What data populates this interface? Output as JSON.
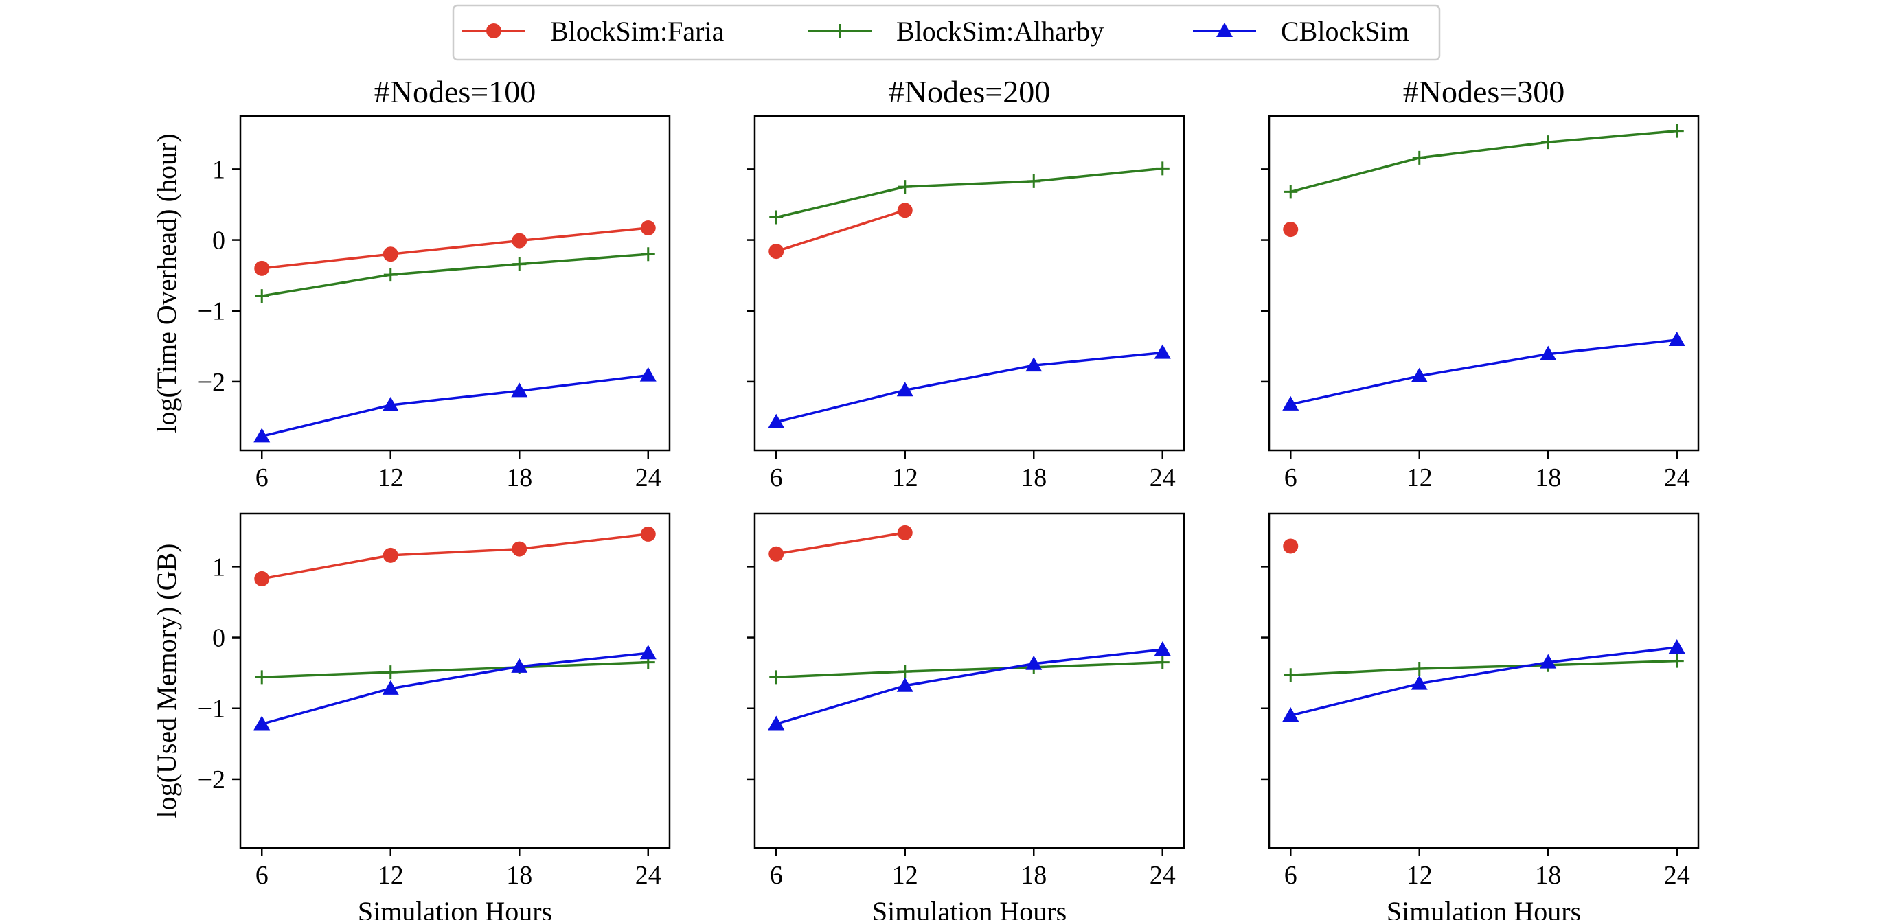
{
  "chart_data": {
    "type": "line",
    "layout": "2x3 grid, shared legend",
    "legend": {
      "placement": "top-center",
      "entries": [
        {
          "name": "BlockSim:Faria",
          "color": "#e0392b",
          "marker": "circle"
        },
        {
          "name": "BlockSim:Alharby",
          "color": "#2e7d1f",
          "marker": "plus"
        },
        {
          "name": "CBlockSim",
          "color": "#0b10e0",
          "marker": "triangle"
        }
      ]
    },
    "column_titles": [
      "#Nodes=100",
      "#Nodes=200",
      "#Nodes=300"
    ],
    "row_ylabels": [
      "log(Time Overhead) (hour)",
      "log(Used Memory) (GB)"
    ],
    "xlabel": "Simulation Hours",
    "x": [
      6,
      12,
      18,
      24
    ],
    "x_ticks": [
      "6",
      "12",
      "18",
      "24"
    ],
    "xlim": [
      5,
      25
    ],
    "y_ticks": [
      {
        "value": 1,
        "label": "1"
      },
      {
        "value": 0,
        "label": "0"
      },
      {
        "value": -1,
        "label": "−1"
      },
      {
        "value": -2,
        "label": "−2"
      }
    ],
    "rows": [
      {
        "metric": "log(Time Overhead) (hour)",
        "ylim": [
          -2.97,
          1.75
        ],
        "panels": [
          {
            "title": "#Nodes=100",
            "series": [
              {
                "name": "BlockSim:Faria",
                "values": [
                  -0.4,
                  -0.2,
                  -0.01,
                  0.17
                ]
              },
              {
                "name": "BlockSim:Alharby",
                "values": [
                  -0.79,
                  -0.49,
                  -0.34,
                  -0.2
                ]
              },
              {
                "name": "CBlockSim",
                "values": [
                  -2.77,
                  -2.33,
                  -2.13,
                  -1.91
                ]
              }
            ]
          },
          {
            "title": "#Nodes=200",
            "series": [
              {
                "name": "BlockSim:Faria",
                "values": [
                  -0.16,
                  0.42,
                  null,
                  null
                ]
              },
              {
                "name": "BlockSim:Alharby",
                "values": [
                  0.32,
                  0.75,
                  0.83,
                  1.01
                ]
              },
              {
                "name": "CBlockSim",
                "values": [
                  -2.57,
                  -2.12,
                  -1.77,
                  -1.59
                ]
              }
            ]
          },
          {
            "title": "#Nodes=300",
            "series": [
              {
                "name": "BlockSim:Faria",
                "values": [
                  0.15,
                  null,
                  null,
                  null
                ]
              },
              {
                "name": "BlockSim:Alharby",
                "values": [
                  0.68,
                  1.16,
                  1.38,
                  1.54
                ]
              },
              {
                "name": "CBlockSim",
                "values": [
                  -2.32,
                  -1.92,
                  -1.61,
                  -1.41
                ]
              }
            ]
          }
        ]
      },
      {
        "metric": "log(Used Memory) (GB)",
        "ylim": [
          -2.97,
          1.75
        ],
        "panels": [
          {
            "title": "",
            "series": [
              {
                "name": "BlockSim:Faria",
                "values": [
                  0.83,
                  1.16,
                  1.25,
                  1.46
                ]
              },
              {
                "name": "BlockSim:Alharby",
                "values": [
                  -0.56,
                  -0.49,
                  -0.42,
                  -0.35
                ]
              },
              {
                "name": "CBlockSim",
                "values": [
                  -1.22,
                  -0.72,
                  -0.41,
                  -0.22
                ]
              }
            ]
          },
          {
            "title": "",
            "series": [
              {
                "name": "BlockSim:Faria",
                "values": [
                  1.18,
                  1.48,
                  null,
                  null
                ]
              },
              {
                "name": "BlockSim:Alharby",
                "values": [
                  -0.56,
                  -0.48,
                  -0.42,
                  -0.35
                ]
              },
              {
                "name": "CBlockSim",
                "values": [
                  -1.22,
                  -0.68,
                  -0.37,
                  -0.17
                ]
              }
            ]
          },
          {
            "title": "",
            "series": [
              {
                "name": "BlockSim:Faria",
                "values": [
                  1.29,
                  null,
                  null,
                  null
                ]
              },
              {
                "name": "BlockSim:Alharby",
                "values": [
                  -0.53,
                  -0.44,
                  -0.39,
                  -0.33
                ]
              },
              {
                "name": "CBlockSim",
                "values": [
                  -1.1,
                  -0.65,
                  -0.35,
                  -0.14
                ]
              }
            ]
          }
        ]
      }
    ]
  }
}
